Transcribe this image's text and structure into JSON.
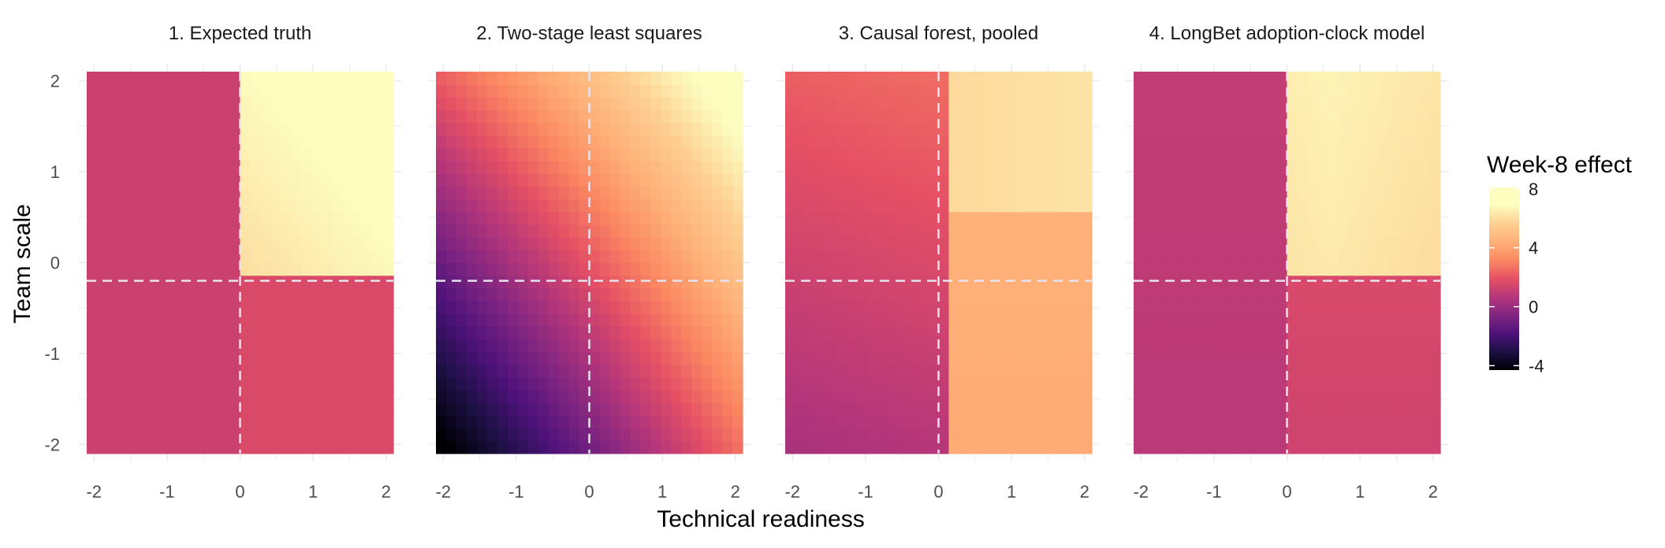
{
  "chart_data": {
    "type": "heatmap",
    "xlabel": "Technical readiness",
    "ylabel": "Team scale",
    "xlim": [
      -2.1,
      2.1
    ],
    "ylim": [
      -2.1,
      2.1
    ],
    "x_ticks": [
      "-2",
      "-1",
      "0",
      "1",
      "2"
    ],
    "y_ticks": [
      "-2",
      "-1",
      "0",
      "1",
      "2"
    ],
    "x_tick_values": [
      -2,
      -1,
      0,
      1,
      2
    ],
    "y_tick_values": [
      -2,
      -1,
      0,
      1,
      2
    ],
    "reference_lines": {
      "x": 0,
      "y": -0.2
    },
    "grid": true,
    "color_scale": "magma",
    "legend": {
      "title": "Week-8 effect",
      "placement": "right",
      "range": [
        -4.3,
        8.1
      ],
      "ticks": [
        8,
        4,
        0,
        -4
      ],
      "tick_labels": [
        "8",
        "4",
        "0",
        "-4"
      ]
    },
    "panels": [
      {
        "title": "1. Expected truth",
        "approx_values": {
          "x_lt_0": 1.2,
          "x_gt_0_and_y_lt_-0.2": 1.6,
          "x_gt_0_and_y_gt_-0.2_min": 6.0,
          "x_gt_0_and_y_gt_-0.2_max": 7.8
        }
      },
      {
        "title": "2. Two-stage least squares",
        "approx_values": {
          "corner_-2_-2": -4.3,
          "corner_2_2": 8.0,
          "center": 2.5
        }
      },
      {
        "title": "3. Causal forest, pooled",
        "approx_values": {
          "x_lt_0_top": 2.6,
          "x_lt_0_bottom": 0.7,
          "x_gt_0_and_y_gt_0.5": 6.0,
          "x_gt_0_and_y_lt_0.5": 4.3
        }
      },
      {
        "title": "4. LongBet adoption-clock model",
        "approx_values": {
          "x_lt_0": 1.0,
          "x_gt_0_and_y_lt_-0.2": 1.5,
          "x_gt_0_and_y_gt_-0.2": 6.5
        }
      }
    ]
  }
}
